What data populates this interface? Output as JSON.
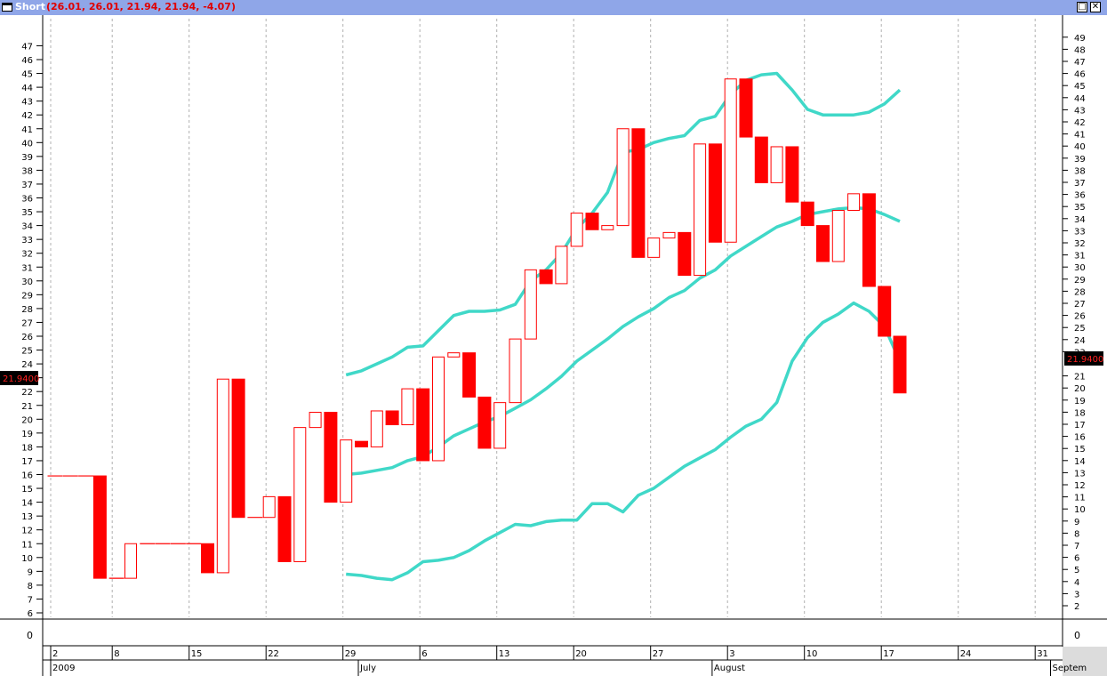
{
  "window": {
    "title": "Short",
    "values": "(26.01, 26.01, 21.94, 21.94, -4.07)",
    "restore_label": "□",
    "close_label": "✕"
  },
  "colors": {
    "up": "#ff0000",
    "down": "#ff0000",
    "band": "#40d8c8",
    "frame": "#000000"
  },
  "chart_data": {
    "type": "candlestick",
    "left_axis": {
      "ticks": [
        6,
        7,
        8,
        9,
        10,
        11,
        12,
        13,
        14,
        15,
        16,
        17,
        18,
        19,
        20,
        21,
        22,
        23,
        24,
        25,
        26,
        27,
        28,
        29,
        30,
        31,
        32,
        33,
        34,
        35,
        36,
        37,
        38,
        39,
        40,
        41,
        42,
        43,
        44,
        45,
        46,
        47
      ],
      "range": [
        6,
        47
      ]
    },
    "right_axis": {
      "ticks": [
        2,
        3,
        4,
        5,
        6,
        7,
        8,
        9,
        10,
        11,
        12,
        13,
        14,
        15,
        16,
        17,
        18,
        19,
        20,
        21,
        23,
        24,
        25,
        26,
        27,
        28,
        29,
        30,
        31,
        32,
        33,
        34,
        35,
        36,
        37,
        38,
        39,
        40,
        41,
        42,
        43,
        44,
        45,
        46,
        47,
        48,
        49
      ]
    },
    "last_price_label": "21.9400",
    "volume_axis_label": "0",
    "x_labels": [
      {
        "text": "2",
        "slot": 0
      },
      {
        "text": "8",
        "slot": 4
      },
      {
        "text": "15",
        "slot": 9
      },
      {
        "text": "22",
        "slot": 14
      },
      {
        "text": "29",
        "slot": 19
      },
      {
        "text": "6",
        "slot": 24
      },
      {
        "text": "13",
        "slot": 29
      },
      {
        "text": "20",
        "slot": 34
      },
      {
        "text": "27",
        "slot": 39
      },
      {
        "text": "3",
        "slot": 44
      },
      {
        "text": "10",
        "slot": 49
      },
      {
        "text": "17",
        "slot": 54
      },
      {
        "text": "24",
        "slot": 59
      },
      {
        "text": "31",
        "slot": 64
      }
    ],
    "period_labels": [
      {
        "text": "2009",
        "slot": 0
      },
      {
        "text": "July",
        "slot": 20
      },
      {
        "text": "August",
        "slot": 43
      },
      {
        "text": "Septem",
        "slot": 65
      }
    ],
    "candles": [
      {
        "slot": 0,
        "open": 15.9,
        "close": 15.9
      },
      {
        "slot": 1,
        "open": 15.9,
        "close": 15.9
      },
      {
        "slot": 2,
        "open": 15.9,
        "close": 15.9
      },
      {
        "slot": 3,
        "open": 15.9,
        "close": 8.5
      },
      {
        "slot": 4,
        "open": 8.5,
        "close": 8.5
      },
      {
        "slot": 5,
        "open": 8.5,
        "close": 11.0
      },
      {
        "slot": 6,
        "open": 11.0,
        "close": 11.0
      },
      {
        "slot": 7,
        "open": 11.0,
        "close": 11.0
      },
      {
        "slot": 8,
        "open": 11.0,
        "close": 11.0
      },
      {
        "slot": 9,
        "open": 11.0,
        "close": 11.0
      },
      {
        "slot": 10,
        "open": 11.0,
        "close": 8.9
      },
      {
        "slot": 11,
        "open": 8.9,
        "close": 22.9
      },
      {
        "slot": 12,
        "open": 22.9,
        "close": 12.9
      },
      {
        "slot": 13,
        "open": 12.9,
        "close": 12.9
      },
      {
        "slot": 14,
        "open": 12.9,
        "close": 14.4
      },
      {
        "slot": 15,
        "open": 14.4,
        "close": 9.7
      },
      {
        "slot": 16,
        "open": 9.7,
        "close": 19.4
      },
      {
        "slot": 17,
        "open": 19.4,
        "close": 20.5
      },
      {
        "slot": 18,
        "open": 20.5,
        "close": 14.0
      },
      {
        "slot": 19,
        "open": 14.0,
        "close": 18.5
      },
      {
        "slot": 20,
        "open": 18.4,
        "close": 18.0
      },
      {
        "slot": 21,
        "open": 18.0,
        "close": 20.6
      },
      {
        "slot": 22,
        "open": 20.6,
        "close": 19.6
      },
      {
        "slot": 23,
        "open": 19.6,
        "close": 22.2
      },
      {
        "slot": 24,
        "open": 22.2,
        "close": 17.0
      },
      {
        "slot": 25,
        "open": 17.0,
        "close": 24.5
      },
      {
        "slot": 26,
        "open": 24.5,
        "close": 24.8
      },
      {
        "slot": 27,
        "open": 24.8,
        "close": 21.6
      },
      {
        "slot": 28,
        "open": 21.6,
        "close": 17.9
      },
      {
        "slot": 29,
        "open": 17.9,
        "close": 21.2
      },
      {
        "slot": 30,
        "open": 21.2,
        "close": 25.8
      },
      {
        "slot": 31,
        "open": 25.8,
        "close": 30.8
      },
      {
        "slot": 32,
        "open": 30.8,
        "close": 29.8
      },
      {
        "slot": 33,
        "open": 29.8,
        "close": 32.5
      },
      {
        "slot": 34,
        "open": 32.5,
        "close": 34.9
      },
      {
        "slot": 35,
        "open": 34.9,
        "close": 33.7
      },
      {
        "slot": 36,
        "open": 33.7,
        "close": 34.0
      },
      {
        "slot": 37,
        "open": 34.0,
        "close": 41.0
      },
      {
        "slot": 38,
        "open": 41.0,
        "close": 31.7
      },
      {
        "slot": 39,
        "open": 31.7,
        "close": 33.1
      },
      {
        "slot": 40,
        "open": 33.1,
        "close": 33.5
      },
      {
        "slot": 41,
        "open": 33.5,
        "close": 30.4
      },
      {
        "slot": 42,
        "open": 30.4,
        "close": 39.9
      },
      {
        "slot": 43,
        "open": 39.9,
        "close": 32.8
      },
      {
        "slot": 44,
        "open": 32.8,
        "close": 44.6
      },
      {
        "slot": 45,
        "open": 44.6,
        "close": 40.4
      },
      {
        "slot": 46,
        "open": 40.4,
        "close": 37.1
      },
      {
        "slot": 47,
        "open": 37.1,
        "close": 39.7
      },
      {
        "slot": 48,
        "open": 39.7,
        "close": 35.7
      },
      {
        "slot": 49,
        "open": 35.7,
        "close": 34.0
      },
      {
        "slot": 50,
        "open": 34.0,
        "close": 31.4
      },
      {
        "slot": 51,
        "open": 31.4,
        "close": 35.1
      },
      {
        "slot": 52,
        "open": 35.1,
        "close": 36.3
      },
      {
        "slot": 53,
        "open": 36.3,
        "close": 29.6
      },
      {
        "slot": 54,
        "open": 29.6,
        "close": 26.0
      },
      {
        "slot": 55,
        "open": 26.0,
        "close": 21.9
      }
    ],
    "bands": {
      "upper": [
        [
          19,
          23.2
        ],
        [
          20,
          23.5
        ],
        [
          21,
          24.0
        ],
        [
          22,
          24.5
        ],
        [
          23,
          25.2
        ],
        [
          24,
          25.3
        ],
        [
          25,
          26.4
        ],
        [
          26,
          27.5
        ],
        [
          27,
          27.8
        ],
        [
          28,
          27.8
        ],
        [
          29,
          27.9
        ],
        [
          30,
          28.3
        ],
        [
          31,
          30.0
        ],
        [
          32,
          30.8
        ],
        [
          33,
          32.0
        ],
        [
          34,
          33.8
        ],
        [
          35,
          34.9
        ],
        [
          36,
          36.4
        ],
        [
          37,
          39.3
        ],
        [
          38,
          39.5
        ],
        [
          39,
          40.0
        ],
        [
          40,
          40.3
        ],
        [
          41,
          40.5
        ],
        [
          42,
          41.6
        ],
        [
          43,
          41.9
        ],
        [
          44,
          43.5
        ],
        [
          45,
          44.5
        ],
        [
          46,
          44.9
        ],
        [
          47,
          45.0
        ],
        [
          48,
          43.8
        ],
        [
          49,
          42.4
        ],
        [
          50,
          42.0
        ],
        [
          51,
          42.0
        ],
        [
          52,
          42.0
        ],
        [
          53,
          42.2
        ],
        [
          54,
          42.8
        ],
        [
          55,
          43.8
        ]
      ],
      "middle": [
        [
          19,
          16.0
        ],
        [
          20,
          16.1
        ],
        [
          21,
          16.3
        ],
        [
          22,
          16.5
        ],
        [
          23,
          17.0
        ],
        [
          24,
          17.3
        ],
        [
          25,
          18.0
        ],
        [
          26,
          18.8
        ],
        [
          27,
          19.3
        ],
        [
          28,
          19.8
        ],
        [
          29,
          20.2
        ],
        [
          30,
          20.8
        ],
        [
          31,
          21.4
        ],
        [
          32,
          22.2
        ],
        [
          33,
          23.1
        ],
        [
          34,
          24.2
        ],
        [
          35,
          25.0
        ],
        [
          36,
          25.8
        ],
        [
          37,
          26.7
        ],
        [
          38,
          27.4
        ],
        [
          39,
          28.0
        ],
        [
          40,
          28.8
        ],
        [
          41,
          29.3
        ],
        [
          42,
          30.2
        ],
        [
          43,
          30.8
        ],
        [
          44,
          31.8
        ],
        [
          45,
          32.5
        ],
        [
          46,
          33.2
        ],
        [
          47,
          33.9
        ],
        [
          48,
          34.3
        ],
        [
          49,
          34.8
        ],
        [
          50,
          35.0
        ],
        [
          51,
          35.2
        ],
        [
          52,
          35.3
        ],
        [
          53,
          35.2
        ],
        [
          54,
          34.8
        ],
        [
          55,
          34.3
        ]
      ],
      "lower": [
        [
          19,
          8.8
        ],
        [
          20,
          8.7
        ],
        [
          21,
          8.5
        ],
        [
          22,
          8.4
        ],
        [
          23,
          8.9
        ],
        [
          24,
          9.7
        ],
        [
          25,
          9.8
        ],
        [
          26,
          10.0
        ],
        [
          27,
          10.5
        ],
        [
          28,
          11.2
        ],
        [
          29,
          11.8
        ],
        [
          30,
          12.4
        ],
        [
          31,
          12.3
        ],
        [
          32,
          12.6
        ],
        [
          33,
          12.7
        ],
        [
          34,
          12.7
        ],
        [
          35,
          13.9
        ],
        [
          36,
          13.9
        ],
        [
          37,
          13.3
        ],
        [
          38,
          14.5
        ],
        [
          39,
          15.0
        ],
        [
          40,
          15.8
        ],
        [
          41,
          16.6
        ],
        [
          42,
          17.2
        ],
        [
          43,
          17.8
        ],
        [
          44,
          18.7
        ],
        [
          45,
          19.5
        ],
        [
          46,
          20.0
        ],
        [
          47,
          21.2
        ],
        [
          48,
          24.2
        ],
        [
          49,
          25.9
        ],
        [
          50,
          27.0
        ],
        [
          51,
          27.6
        ],
        [
          52,
          28.4
        ],
        [
          53,
          27.8
        ],
        [
          54,
          26.7
        ],
        [
          55,
          24.2
        ]
      ]
    }
  }
}
